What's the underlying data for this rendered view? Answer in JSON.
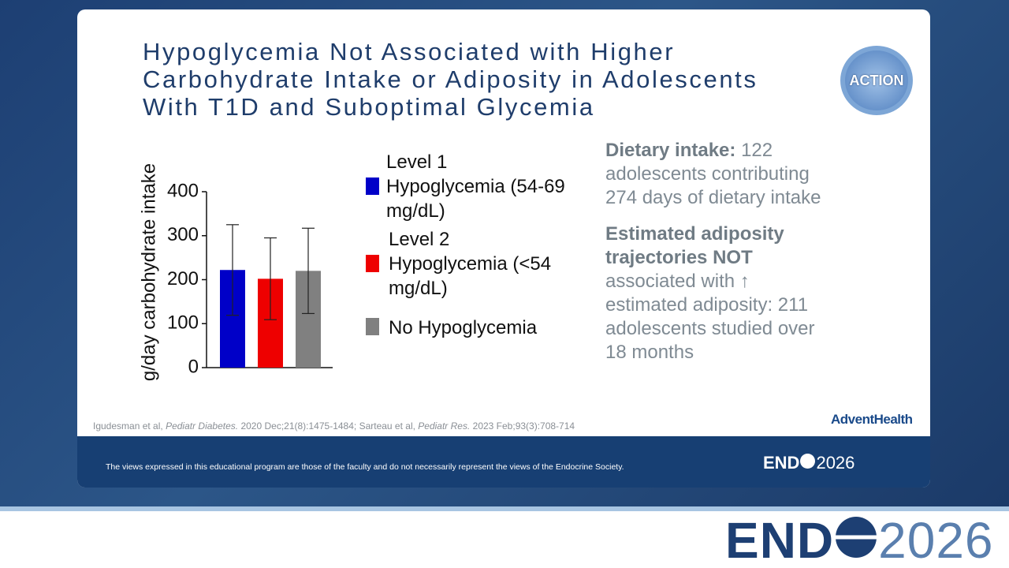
{
  "slide": {
    "title": "Hypoglycemia Not Associated with Higher\nCarbohydrate Intake or Adiposity in Adolescents\nWith T1D and Suboptimal Glycemia",
    "study_logo": "ACTION",
    "findings": [
      {
        "bold": "Dietary intake:",
        "text": " 122\nadolescents contributing\n274 days of dietary intake"
      },
      {
        "bold": "Estimated adiposity\ntrajectories NOT",
        "text": "\nassociated with ↑\nestimated adiposity: 211\nadolescents studied over\n18 months"
      }
    ],
    "citation": [
      {
        "text": "Igudesman et al, ",
        "italic": false
      },
      {
        "text": "Pediatr Diabetes.",
        "italic": true
      },
      {
        "text": " 2020 Dec;21(8):1475-1484; Sarteau et al, ",
        "italic": false
      },
      {
        "text": "Pediatr Res.",
        "italic": true
      },
      {
        "text": " 2023 Feb;93(3):708-714",
        "italic": false
      }
    ],
    "sponsor": "AdventHealth",
    "disclaimer": "The views expressed in this educational program are those of the faculty and do not necessarily represent the views of the Endocrine Society.",
    "event_logo": {
      "left": "END",
      "right": "2026"
    }
  },
  "chart_data": {
    "type": "bar",
    "y_label": "g/day carbohydrate intake",
    "categories": [
      null
    ],
    "series": [
      {
        "name": "Level 1\nHypoglycemia (54-69\nmg/dL)",
        "color": "#0000c8",
        "values": [
          222
        ],
        "errors": [
          103
        ]
      },
      {
        "name": "Level 2\nHypoglycemia (<54\nmg/dL)",
        "color": "#ee0000",
        "values": [
          202
        ],
        "errors": [
          93
        ]
      },
      {
        "name": "No Hypoglycemia",
        "color": "#808080",
        "values": [
          220
        ],
        "errors": [
          97
        ]
      }
    ],
    "ylim": [
      0,
      400
    ],
    "yticks": [
      0,
      100,
      200,
      300,
      400
    ],
    "grid": false
  }
}
